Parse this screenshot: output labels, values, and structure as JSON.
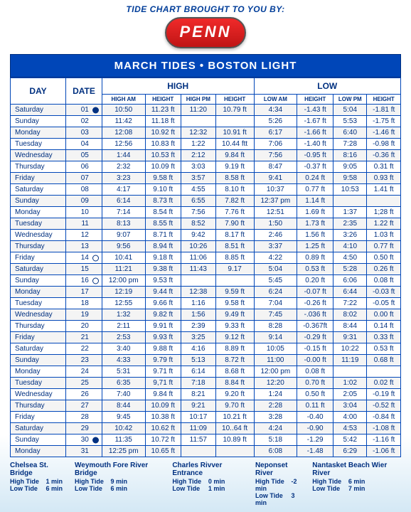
{
  "sponsor_label": "TIDE CHART BROUGHT TO YOU BY:",
  "logo_text": "PENN",
  "title": "MARCH TIDES • BOSTON LIGHT",
  "columns": {
    "day": "DAY",
    "date": "DATE",
    "high": "HIGH",
    "low": "LOW",
    "high_am": "HIGH AM",
    "height1": "HEIGHT",
    "high_pm": "HIGH PM",
    "height2": "HEIGHT",
    "low_am": "LOW AM",
    "height3": "HEIGHT",
    "low_pm": "LOW PM",
    "height4": "HEIGHT"
  },
  "rows": [
    {
      "day": "Saturday",
      "date": "01",
      "moon": "full",
      "ham": "10:50",
      "h1": "11.23 ft",
      "hpm": "11:20",
      "h2": "10.79 ft",
      "lam": "4:34",
      "h3": "-1.43 ft",
      "lpm": "5:04",
      "h4": "-1.81 ft"
    },
    {
      "day": "Sunday",
      "date": "02",
      "moon": "",
      "ham": "11:42",
      "h1": "11.18 ft",
      "hpm": "",
      "h2": "",
      "lam": "5:26",
      "h3": "-1.67 ft",
      "lpm": "5:53",
      "h4": "-1.75 ft"
    },
    {
      "day": "Monday",
      "date": "03",
      "moon": "",
      "ham": "12:08",
      "h1": "10.92 ft",
      "hpm": "12:32",
      "h2": "10.91 ft",
      "lam": "6:17",
      "h3": "-1.66 ft",
      "lpm": "6:40",
      "h4": "-1.46 ft"
    },
    {
      "day": "Tuesday",
      "date": "04",
      "moon": "",
      "ham": "12:56",
      "h1": "10.83 ft",
      "hpm": "1:22",
      "h2": "10.44 ftt",
      "lam": "7:06",
      "h3": "-1.40 ft",
      "lpm": "7:28",
      "h4": "-0.98 ft"
    },
    {
      "day": "Wednesday",
      "date": "05",
      "moon": "",
      "ham": "1:44",
      "h1": "10.53 ft",
      "hpm": "2:12",
      "h2": "9.84 ft",
      "lam": "7:56",
      "h3": "-0.95 ft",
      "lpm": "8:16",
      "h4": "-0.36 ft"
    },
    {
      "day": "Thursday",
      "date": "06",
      "moon": "",
      "ham": "2:32",
      "h1": "10.09 ft",
      "hpm": "3:03",
      "h2": "9.19 ft",
      "lam": "8:47",
      "h3": "-0.37 ft",
      "lpm": "9:05",
      "h4": "0.31 ft"
    },
    {
      "day": "Friday",
      "date": "07",
      "moon": "",
      "ham": "3:23",
      "h1": "9.58 ft",
      "hpm": "3:57",
      "h2": "8.58 ft",
      "lam": "9:41",
      "h3": "0.24 ft",
      "lpm": "9:58",
      "h4": "0.93 ft"
    },
    {
      "day": "Saturday",
      "date": "08",
      "moon": "",
      "ham": "4:17",
      "h1": "9.10 ft",
      "hpm": "4:55",
      "h2": "8.10 ft",
      "lam": "10:37",
      "h3": "0.77 ft",
      "lpm": "10:53",
      "h4": "1.41 ft"
    },
    {
      "day": "Sunday",
      "date": "09",
      "moon": "",
      "ham": "6:14",
      "h1": "8.73 ft",
      "hpm": "6:55",
      "h2": "7.82 ft",
      "lam": "12:37 pm",
      "h3": "1.14 ft",
      "lpm": "",
      "h4": ""
    },
    {
      "day": "Monday",
      "date": "10",
      "moon": "",
      "ham": "7:14",
      "h1": "8.54 ft",
      "hpm": "7:56",
      "h2": "7.76 ft",
      "lam": "12:51",
      "h3": "1.69 ft",
      "lpm": "1:37",
      "h4": "1;28 ft"
    },
    {
      "day": "Tuesday",
      "date": "11",
      "moon": "",
      "ham": "8:13",
      "h1": "8.55 ft",
      "hpm": "8:52",
      "h2": "7.90 ft",
      "lam": "1:50",
      "h3": "1.73 ft",
      "lpm": "2:35",
      "h4": "1.22 ft"
    },
    {
      "day": "Wednesday",
      "date": "12",
      "moon": "",
      "ham": "9:07",
      "h1": "8.71 ft",
      "hpm": "9:42",
      "h2": "8.17 ft",
      "lam": "2:46",
      "h3": "1.56 ft",
      "lpm": "3:26",
      "h4": "1.03 ft"
    },
    {
      "day": "Thursday",
      "date": "13",
      "moon": "",
      "ham": "9:56",
      "h1": "8.94 ft",
      "hpm": "10:26",
      "h2": "8.51 ft",
      "lam": "3:37",
      "h3": "1.25 ft",
      "lpm": "4:10",
      "h4": "0.77 ft"
    },
    {
      "day": "Friday",
      "date": "14",
      "moon": "new",
      "ham": "10:41",
      "h1": "9.18 ft",
      "hpm": "11:06",
      "h2": "8.85 ft",
      "lam": "4:22",
      "h3": "0.89 ft",
      "lpm": "4:50",
      "h4": "0.50 ft"
    },
    {
      "day": "Saturday",
      "date": "15",
      "moon": "",
      "ham": "11:21",
      "h1": "9.38 ft",
      "hpm": "11:43",
      "h2": "9.17",
      "lam": "5:04",
      "h3": "0.53 ft",
      "lpm": "5:28",
      "h4": "0.26 ft"
    },
    {
      "day": "Sunday",
      "date": "16",
      "moon": "new",
      "ham": "12:00 pm",
      "h1": "9.53 ft",
      "hpm": "",
      "h2": "",
      "lam": "5:45",
      "h3": "0.20 ft",
      "lpm": "6:06",
      "h4": "0.08 ft"
    },
    {
      "day": "Monday",
      "date": "17",
      "moon": "",
      "ham": "12:19",
      "h1": "9.44 ft",
      "hpm": "12:38",
      "h2": "9.59 ft",
      "lam": "6:24",
      "h3": "-0.07 ft",
      "lpm": "6:44",
      "h4": "-0.03 ft"
    },
    {
      "day": "Tuesday",
      "date": "18",
      "moon": "",
      "ham": "12:55",
      "h1": "9.66 ft",
      "hpm": "1:16",
      "h2": "9.58 ft",
      "lam": "7:04",
      "h3": "-0.26 ft",
      "lpm": "7:22",
      "h4": "-0.05 ft"
    },
    {
      "day": "Wednesday",
      "date": "19",
      "moon": "",
      "ham": "1:32",
      "h1": "9.82 ft",
      "hpm": "1:56",
      "h2": "9.49 ft",
      "lam": "7:45",
      "h3": "-.036 ft",
      "lpm": "8:02",
      "h4": "0.00 ft"
    },
    {
      "day": "Thursday",
      "date": "20",
      "moon": "",
      "ham": "2:11",
      "h1": "9.91 ft",
      "hpm": "2:39",
      "h2": "9.33 ft",
      "lam": "8:28",
      "h3": "-0.367ft",
      "lpm": "8:44",
      "h4": "0.14 ft"
    },
    {
      "day": "Friday",
      "date": "21",
      "moon": "",
      "ham": "2:53",
      "h1": "9.93 ft",
      "hpm": "3:25",
      "h2": "9.12 ft",
      "lam": "9:14",
      "h3": "-0.29 ft",
      "lpm": "9:31",
      "h4": "0.33 ft"
    },
    {
      "day": "Saturday",
      "date": "22",
      "moon": "",
      "ham": "3:40",
      "h1": "9.88 ft",
      "hpm": "4:16",
      "h2": "8.89 ft",
      "lam": "10:05",
      "h3": "-0.15 ft",
      "lpm": "10:22",
      "h4": "0.53 ft"
    },
    {
      "day": "Sunday",
      "date": "23",
      "moon": "",
      "ham": "4:33",
      "h1": "9.79 ft",
      "hpm": "5:13",
      "h2": "8.72 ft",
      "lam": "11:00",
      "h3": "-0.00 ft",
      "lpm": "11:19",
      "h4": "0.68 ft"
    },
    {
      "day": "Monday",
      "date": "24",
      "moon": "",
      "ham": "5:31",
      "h1": "9.71 ft",
      "hpm": "6:14",
      "h2": "8.68 ft",
      "lam": "12:00 pm",
      "h3": "0.08 ft",
      "lpm": "",
      "h4": ""
    },
    {
      "day": "Tuesday",
      "date": "25",
      "moon": "",
      "ham": "6:35",
      "h1": "9,71 ft",
      "hpm": "7:18",
      "h2": "8.84 ft",
      "lam": "12:20",
      "h3": "0.70 ft",
      "lpm": "1:02",
      "h4": "0.02 ft"
    },
    {
      "day": "Wednesday",
      "date": "26",
      "moon": "",
      "ham": "7:40",
      "h1": "9.84 ft",
      "hpm": "8:21",
      "h2": "9.20 ft",
      "lam": "1:24",
      "h3": "0.50 ft",
      "lpm": "2:05",
      "h4": "-0.19 ft"
    },
    {
      "day": "Thursday",
      "date": "27",
      "moon": "",
      "ham": "8:44",
      "h1": "10.09 ft",
      "hpm": "9:21",
      "h2": "9.70 ft",
      "lam": "2:28",
      "h3": "0.11 ft",
      "lpm": "3:04",
      "h4": "-0.52 ft"
    },
    {
      "day": "Friday",
      "date": "28",
      "moon": "",
      "ham": "9:45",
      "h1": "10.38 ft",
      "hpm": "10:17",
      "h2": "10.21 ft",
      "lam": "3:28",
      "h3": "-0.40",
      "lpm": "4:00",
      "h4": "-0.84 ft"
    },
    {
      "day": "Saturday",
      "date": "29",
      "moon": "",
      "ham": "10:42",
      "h1": "10.62 ft",
      "hpm": "11:09",
      "h2": "10..64 ft",
      "lam": "4:24",
      "h3": "-0.90",
      "lpm": "4:53",
      "h4": "-1.08 ft"
    },
    {
      "day": "Sunday",
      "date": "30",
      "moon": "full",
      "ham": "11:35",
      "h1": "10.72 ft",
      "hpm": "11:57",
      "h2": "10.89 ft",
      "lam": "5:18",
      "h3": "-1.29",
      "lpm": "5:42",
      "h4": "-1.16 ft"
    },
    {
      "day": "Monday",
      "date": "31",
      "moon": "",
      "ham": "12:25 pm",
      "h1": "10.65 ft",
      "hpm": "",
      "h2": "",
      "lam": "6:08",
      "h3": "-1.48",
      "lpm": "6:29",
      "h4": "-1.06 ft"
    }
  ],
  "footer": [
    {
      "name": "Chelsea St. Bridge",
      "ht": "High Tide",
      "hv": "1 min",
      "lt": "Low Tide",
      "lv": "6 min"
    },
    {
      "name": "Weymouth Fore River Bridge",
      "ht": "High Tide",
      "hv": "9 min",
      "lt": "Low Tide",
      "lv": "6 min"
    },
    {
      "name": "Charles Rivver Entrance",
      "ht": "High Tide",
      "hv": "0 min",
      "lt": "Low Tide",
      "lv": "1 min"
    },
    {
      "name": "Neponset River",
      "ht": "High Tide",
      "hv": "-2 min",
      "lt": "Low Tide",
      "lv": "3 min"
    },
    {
      "name": "Nantasket Beach Wier River",
      "ht": "High Tide",
      "hv": "6 min",
      "lt": "Low Tide",
      "lv": "7 min"
    }
  ]
}
